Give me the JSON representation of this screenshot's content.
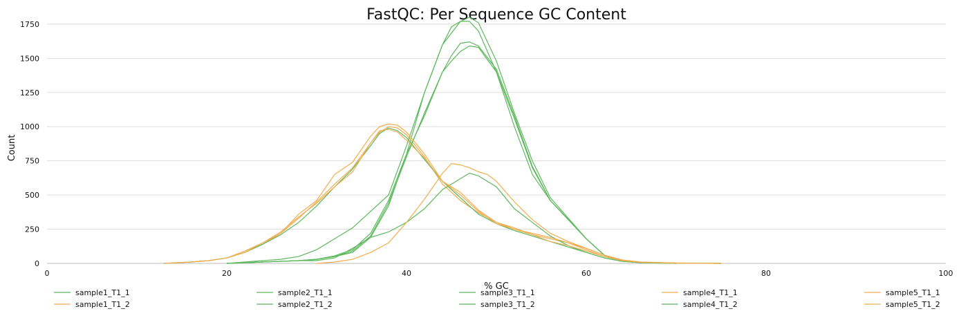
{
  "chart_data": {
    "type": "line",
    "title": "FastQC: Per Sequence GC Content",
    "xlabel": "% GC",
    "ylabel": "Count",
    "xlim": [
      0,
      100
    ],
    "ylim": [
      0,
      1800
    ],
    "x_ticks": [
      0,
      20,
      40,
      60,
      80,
      100
    ],
    "y_ticks": [
      0,
      250,
      500,
      750,
      1000,
      1250,
      1500,
      1750
    ],
    "grid": true,
    "legend_position": "bottom",
    "colors": {
      "green": "#5cb85c",
      "orange": "#f0ad4e",
      "grid": "#dedede"
    },
    "series": [
      {
        "name": "sample1_T1_1",
        "color": "#5cb85c",
        "x": [
          20,
          24,
          28,
          30,
          32,
          34,
          36,
          38,
          40,
          42,
          44,
          45,
          46,
          47,
          48,
          50,
          52,
          54,
          56,
          58,
          60,
          62,
          64,
          66,
          70,
          75
        ],
        "y": [
          0,
          10,
          20,
          30,
          50,
          80,
          190,
          420,
          800,
          1250,
          1600,
          1730,
          1770,
          1800,
          1760,
          1480,
          1100,
          750,
          480,
          330,
          180,
          60,
          20,
          8,
          2,
          0
        ]
      },
      {
        "name": "sample1_T1_2",
        "color": "#f0ad4e",
        "x": [
          13,
          16,
          18,
          20,
          22,
          24,
          26,
          28,
          30,
          32,
          34,
          36,
          37,
          38,
          39,
          40,
          42,
          44,
          46,
          48,
          50,
          52,
          54,
          56,
          58,
          60,
          62,
          64,
          66,
          70,
          75
        ],
        "y": [
          0,
          10,
          20,
          40,
          80,
          140,
          220,
          330,
          450,
          580,
          700,
          880,
          960,
          1000,
          990,
          940,
          780,
          580,
          460,
          370,
          300,
          250,
          210,
          180,
          150,
          110,
          60,
          25,
          10,
          3,
          0
        ]
      },
      {
        "name": "sample2_T1_1",
        "color": "#5cb85c",
        "x": [
          20,
          24,
          28,
          30,
          32,
          34,
          36,
          38,
          40,
          42,
          44,
          45,
          46,
          47,
          48,
          50,
          52,
          54,
          56,
          58,
          60,
          62,
          64,
          66,
          70,
          75
        ],
        "y": [
          0,
          10,
          20,
          30,
          50,
          90,
          200,
          440,
          780,
          1100,
          1400,
          1520,
          1610,
          1620,
          1590,
          1420,
          1080,
          710,
          460,
          320,
          180,
          60,
          20,
          8,
          2,
          0
        ]
      },
      {
        "name": "sample2_T1_2",
        "color": "#5cb85c",
        "x": [
          20,
          24,
          28,
          30,
          32,
          34,
          36,
          38,
          40,
          42,
          44,
          45,
          46,
          47,
          48,
          50,
          52,
          54,
          56,
          58,
          60,
          62,
          64,
          66,
          70,
          75
        ],
        "y": [
          0,
          10,
          20,
          30,
          55,
          100,
          220,
          460,
          800,
          1080,
          1400,
          1480,
          1550,
          1590,
          1580,
          1400,
          1060,
          700,
          460,
          320,
          180,
          60,
          20,
          8,
          2,
          0
        ]
      },
      {
        "name": "sample3_T1_1",
        "color": "#5cb85c",
        "x": [
          20,
          22,
          24,
          26,
          28,
          30,
          32,
          34,
          36,
          38,
          40,
          42,
          44,
          46,
          47,
          48,
          50,
          52,
          54,
          56,
          58,
          60,
          62,
          64,
          66,
          70
        ],
        "y": [
          0,
          10,
          20,
          30,
          50,
          100,
          180,
          260,
          380,
          500,
          860,
          1250,
          1600,
          1770,
          1770,
          1700,
          1400,
          1000,
          650,
          460,
          320,
          180,
          60,
          20,
          8,
          0
        ]
      },
      {
        "name": "sample3_T1_2",
        "color": "#5cb85c",
        "x": [
          20,
          24,
          28,
          30,
          32,
          34,
          36,
          38,
          40,
          42,
          44,
          46,
          47,
          48,
          50,
          52,
          54,
          56,
          58,
          60,
          62,
          64,
          66,
          70
        ],
        "y": [
          0,
          10,
          20,
          20,
          40,
          110,
          190,
          230,
          300,
          400,
          540,
          620,
          660,
          640,
          560,
          400,
          300,
          200,
          130,
          80,
          40,
          15,
          5,
          0
        ]
      },
      {
        "name": "sample4_T1_1",
        "color": "#f0ad4e",
        "x": [
          30,
          32,
          34,
          36,
          38,
          40,
          42,
          44,
          45,
          46,
          47,
          48,
          49,
          50,
          52,
          54,
          56,
          58,
          60,
          62,
          64,
          66,
          70
        ],
        "y": [
          0,
          10,
          30,
          80,
          150,
          300,
          470,
          660,
          730,
          720,
          700,
          670,
          650,
          600,
          450,
          320,
          220,
          160,
          110,
          60,
          25,
          10,
          0
        ]
      },
      {
        "name": "sample4_T1_2",
        "color": "#5cb85c",
        "x": [
          13,
          16,
          18,
          20,
          22,
          24,
          26,
          28,
          30,
          32,
          34,
          36,
          37,
          38,
          39,
          40,
          42,
          44,
          46,
          48,
          50,
          52,
          54,
          56,
          58,
          60,
          62,
          64,
          66,
          70
        ],
        "y": [
          0,
          10,
          20,
          40,
          80,
          140,
          210,
          300,
          420,
          560,
          690,
          860,
          950,
          990,
          970,
          920,
          760,
          600,
          480,
          360,
          290,
          240,
          200,
          160,
          120,
          80,
          40,
          15,
          5,
          0
        ]
      },
      {
        "name": "sample5_T1_1",
        "color": "#f0ad4e",
        "x": [
          13,
          16,
          18,
          20,
          22,
          24,
          26,
          28,
          30,
          32,
          34,
          36,
          37,
          38,
          39,
          40,
          42,
          44,
          46,
          48,
          50,
          52,
          54,
          56,
          58,
          60,
          62,
          64,
          66,
          70,
          75
        ],
        "y": [
          0,
          10,
          20,
          40,
          90,
          150,
          220,
          360,
          460,
          650,
          740,
          930,
          1000,
          1020,
          1010,
          960,
          800,
          600,
          520,
          390,
          300,
          260,
          210,
          160,
          130,
          90,
          50,
          20,
          8,
          2,
          0
        ]
      },
      {
        "name": "sample5_T1_2",
        "color": "#f0ad4e",
        "x": [
          13,
          16,
          18,
          20,
          22,
          24,
          26,
          28,
          30,
          32,
          34,
          36,
          37,
          38,
          39,
          40,
          42,
          44,
          46,
          48,
          50,
          52,
          54,
          56,
          58,
          60,
          62,
          64,
          66,
          70,
          75
        ],
        "y": [
          0,
          10,
          20,
          40,
          80,
          150,
          230,
          340,
          440,
          560,
          670,
          880,
          970,
          980,
          960,
          900,
          770,
          600,
          500,
          380,
          290,
          250,
          220,
          190,
          150,
          100,
          50,
          20,
          8,
          2,
          0
        ]
      }
    ]
  }
}
